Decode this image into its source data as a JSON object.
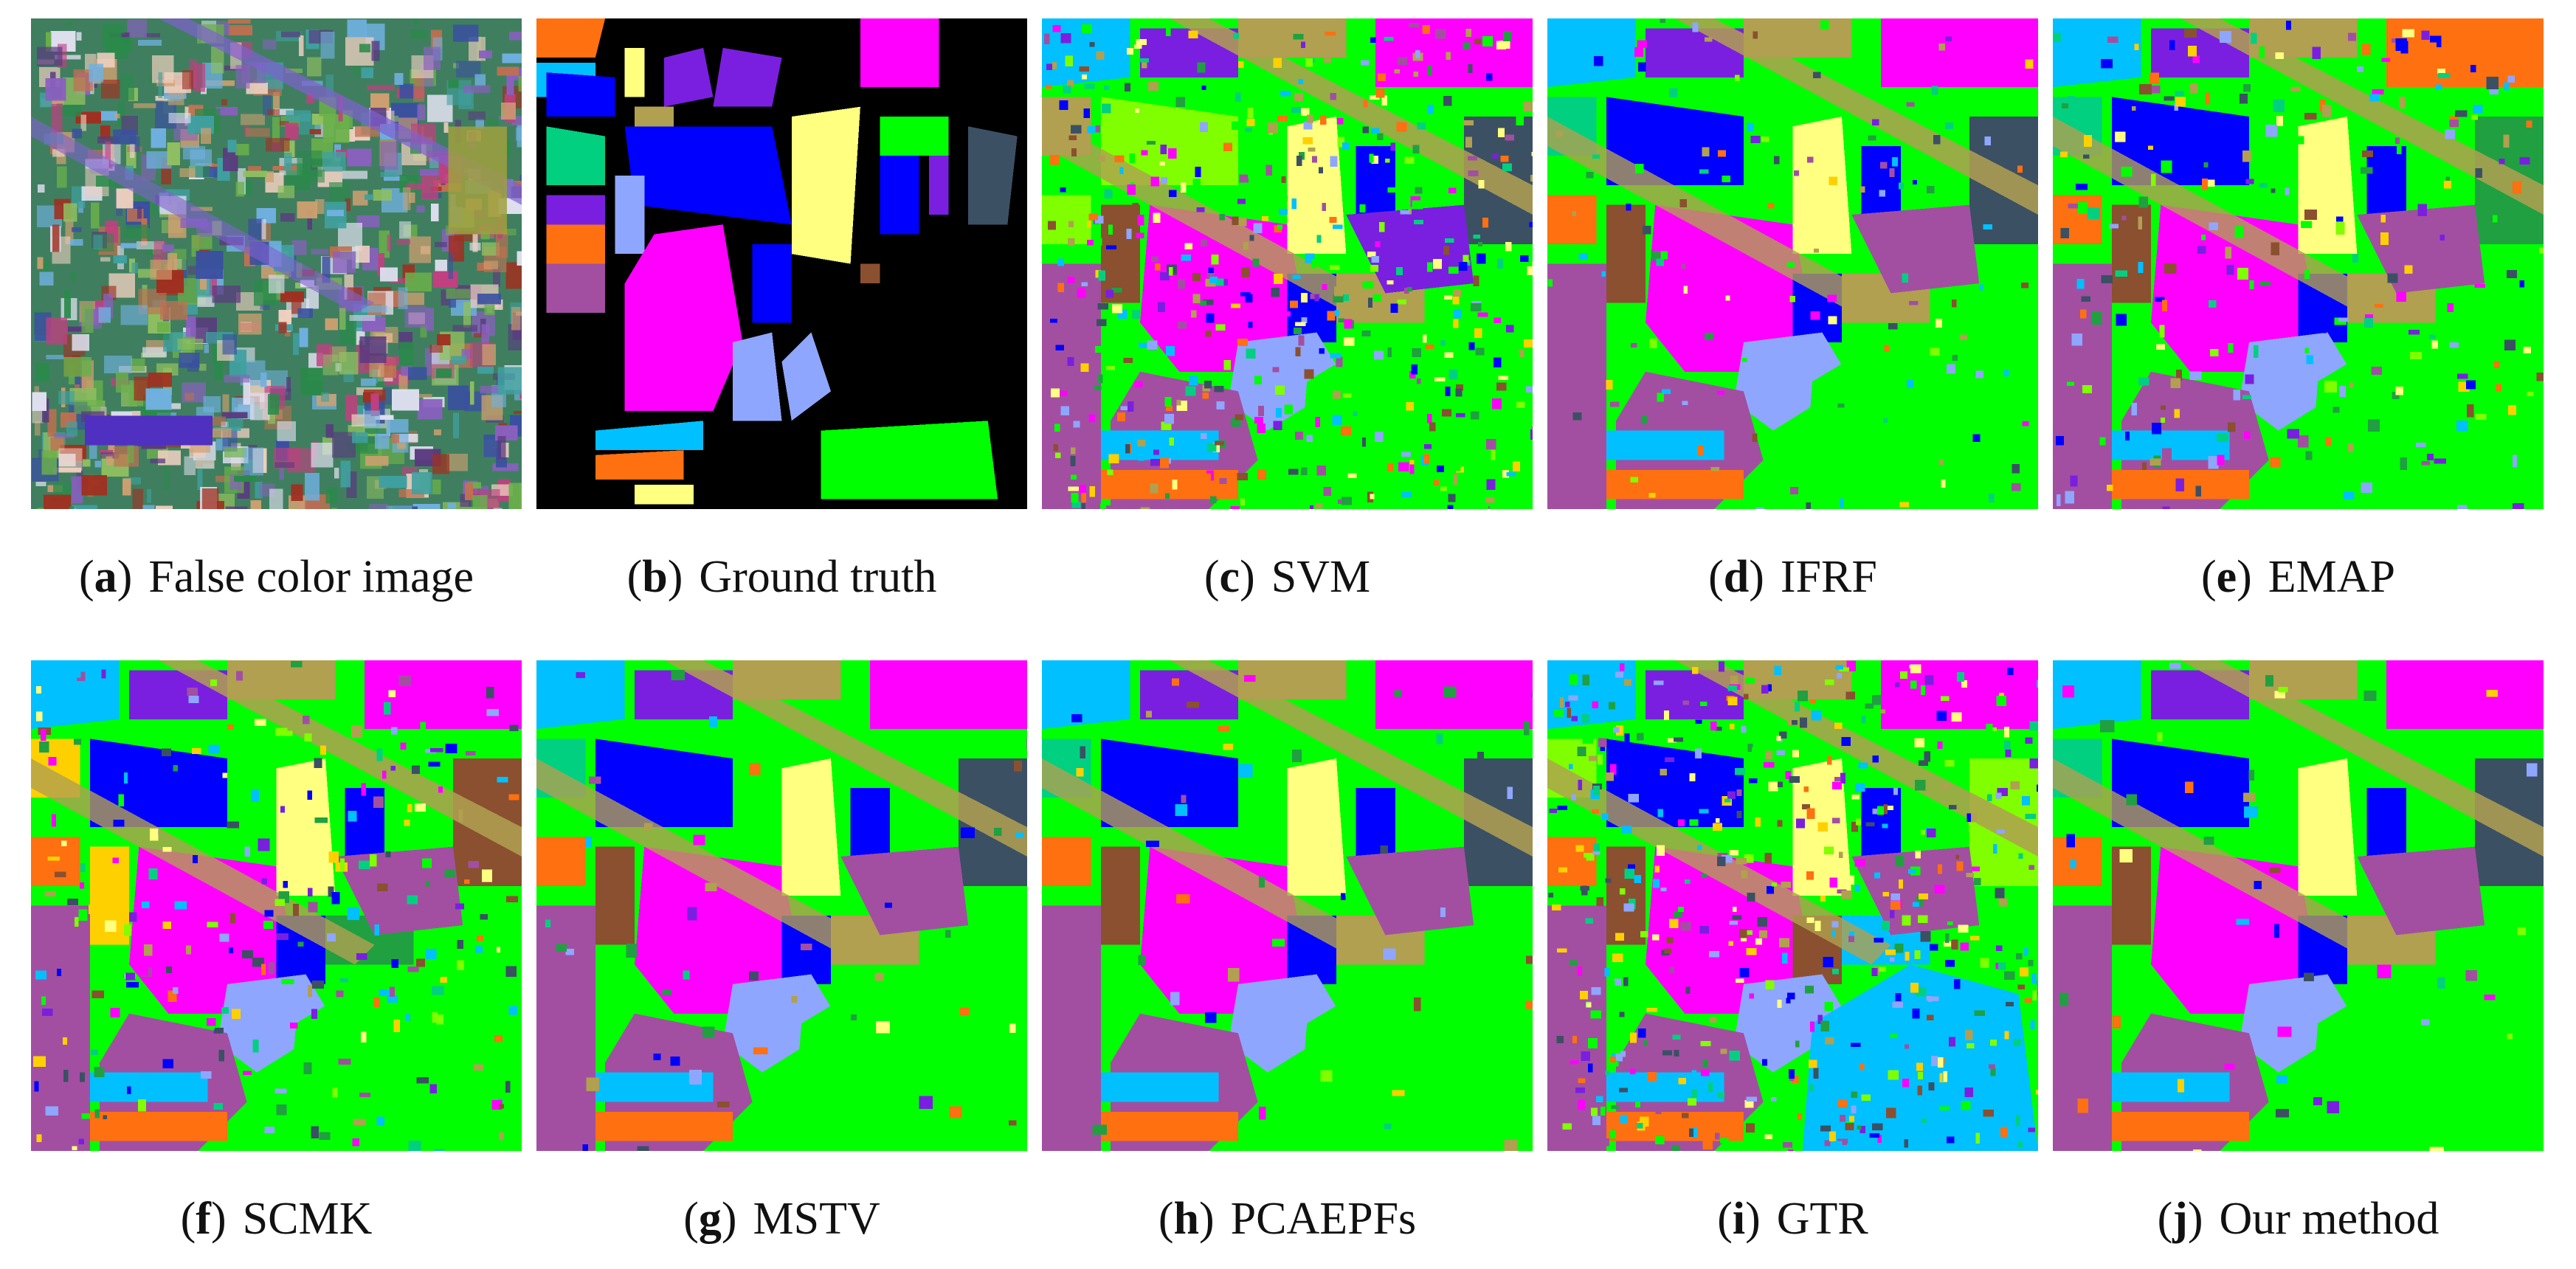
{
  "figure": {
    "panels": [
      {
        "letter": "a",
        "label": "False color image",
        "kind": "false-color"
      },
      {
        "letter": "b",
        "label": "Ground truth",
        "kind": "ground-truth"
      },
      {
        "letter": "c",
        "label": "SVM",
        "kind": "noisy"
      },
      {
        "letter": "d",
        "label": "IFRF",
        "kind": "smooth-light"
      },
      {
        "letter": "e",
        "label": "EMAP",
        "kind": "medium"
      },
      {
        "letter": "f",
        "label": "SCMK",
        "kind": "medium"
      },
      {
        "letter": "g",
        "label": "MSTV",
        "kind": "smooth"
      },
      {
        "letter": "h",
        "label": "PCAEPFs",
        "kind": "smooth"
      },
      {
        "letter": "i",
        "label": "GTR",
        "kind": "noisy"
      },
      {
        "letter": "j",
        "label": "Our method",
        "kind": "smooth"
      }
    ],
    "class_colors": [
      "#ff00ff",
      "#00ff00",
      "#0000ff",
      "#ffff80",
      "#8fa6ff",
      "#a24fa2",
      "#b0a050",
      "#ff7010",
      "#7fff00",
      "#3c5064",
      "#8a5030",
      "#00c0ff",
      "#7a1fe0",
      "#00d080",
      "#20a040",
      "#ffd000"
    ],
    "background_color": "#000000"
  }
}
